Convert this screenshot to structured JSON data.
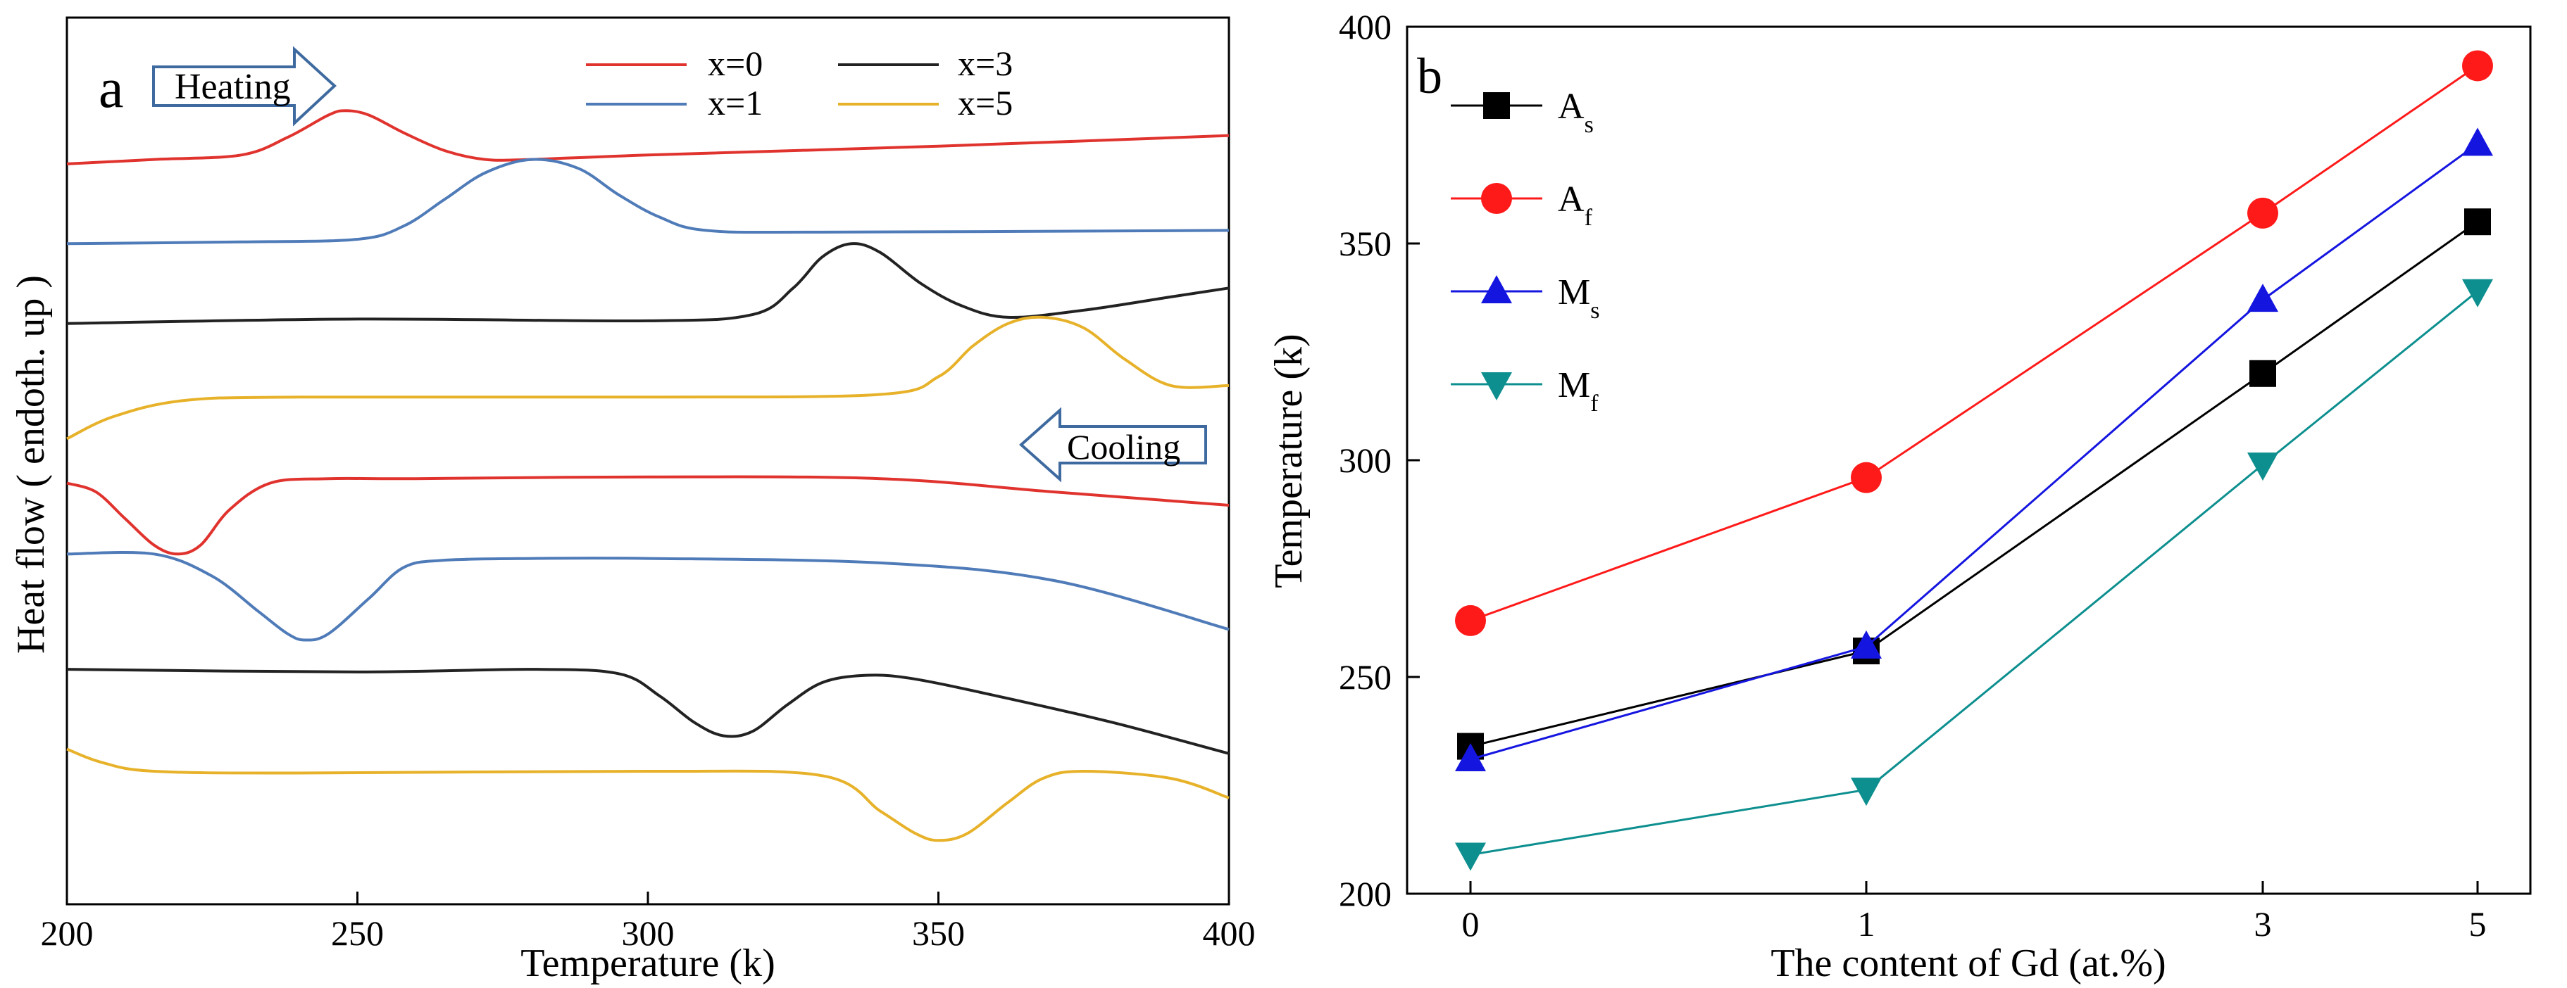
{
  "colors": {
    "x0": "#e0332e",
    "x1": "#4f7bb8",
    "x3": "#222222",
    "x5": "#e7b22a",
    "As": "#000000",
    "Af": "#ff1a1a",
    "Ms": "#1515e0",
    "Mf": "#0e8f8f",
    "arrow": "#3e6aa0"
  },
  "chart_data": [
    {
      "panel": "a",
      "type": "line",
      "xlabel": "Temperature (k)",
      "ylabel": "Heat  flow  ( endoth. up )",
      "xlim": [
        200,
        400
      ],
      "x_ticks": [
        "200",
        "250",
        "300",
        "350",
        "400"
      ],
      "y_ticks": [],
      "ylim": [
        0,
        10
      ],
      "annotations": {
        "heating": "Heating",
        "cooling": "Cooling"
      },
      "legend": [
        {
          "key": "x0",
          "label": "x=0"
        },
        {
          "key": "x1",
          "label": "x=1"
        },
        {
          "key": "x3",
          "label": "x=3"
        },
        {
          "key": "x5",
          "label": "x=5"
        }
      ],
      "series": [
        {
          "name": "x=0 heating",
          "key": "x0",
          "x": [
            200,
            215,
            230,
            238,
            245,
            248,
            252,
            258,
            265,
            272,
            280,
            300,
            350,
            400
          ],
          "y": [
            8.35,
            8.4,
            8.45,
            8.65,
            8.9,
            8.95,
            8.9,
            8.7,
            8.5,
            8.4,
            8.4,
            8.45,
            8.55,
            8.67
          ]
        },
        {
          "name": "x=1 heating",
          "key": "x1",
          "x": [
            200,
            230,
            250,
            258,
            265,
            272,
            280,
            288,
            295,
            302,
            310,
            330,
            400
          ],
          "y": [
            7.45,
            7.47,
            7.5,
            7.65,
            7.95,
            8.25,
            8.4,
            8.3,
            8.0,
            7.75,
            7.6,
            7.58,
            7.6
          ]
        },
        {
          "name": "x=3 heating",
          "key": "x3",
          "x": [
            200,
            250,
            300,
            318,
            325,
            330,
            335,
            340,
            347,
            354,
            362,
            375,
            390,
            400
          ],
          "y": [
            6.55,
            6.6,
            6.58,
            6.65,
            6.95,
            7.3,
            7.45,
            7.35,
            7.0,
            6.75,
            6.62,
            6.7,
            6.85,
            6.95
          ]
        },
        {
          "name": "x=5 heating",
          "key": "x5",
          "x": [
            200,
            208,
            220,
            240,
            300,
            340,
            350,
            356,
            362,
            368,
            375,
            382,
            390,
            400
          ],
          "y": [
            5.25,
            5.5,
            5.68,
            5.72,
            5.72,
            5.75,
            5.95,
            6.3,
            6.55,
            6.62,
            6.5,
            6.15,
            5.85,
            5.85
          ]
        },
        {
          "name": "x=0 cooling",
          "key": "x0",
          "x": [
            200,
            205,
            210,
            215,
            219,
            223,
            228,
            235,
            245,
            260,
            300,
            340,
            370,
            400
          ],
          "y": [
            4.75,
            4.65,
            4.35,
            4.05,
            3.95,
            4.05,
            4.45,
            4.75,
            4.8,
            4.8,
            4.82,
            4.8,
            4.65,
            4.5
          ]
        },
        {
          "name": "x=1 cooling",
          "key": "x1",
          "x": [
            200,
            215,
            225,
            233,
            238,
            241,
            245,
            252,
            258,
            265,
            280,
            300,
            340,
            370,
            400
          ],
          "y": [
            3.95,
            3.95,
            3.7,
            3.3,
            3.05,
            2.98,
            3.05,
            3.45,
            3.8,
            3.88,
            3.9,
            3.9,
            3.85,
            3.65,
            3.1
          ]
        },
        {
          "name": "x=3 cooling",
          "key": "x3",
          "x": [
            200,
            250,
            280,
            295,
            302,
            308,
            313,
            318,
            324,
            330,
            337,
            345,
            360,
            380,
            400
          ],
          "y": [
            2.65,
            2.62,
            2.65,
            2.6,
            2.35,
            2.05,
            1.9,
            1.95,
            2.25,
            2.5,
            2.58,
            2.55,
            2.35,
            2.05,
            1.7
          ]
        },
        {
          "name": "x=5 cooling",
          "key": "x5",
          "x": [
            200,
            206,
            215,
            240,
            300,
            330,
            340,
            346,
            350,
            355,
            362,
            368,
            375,
            390,
            400
          ],
          "y": [
            1.75,
            1.6,
            1.5,
            1.48,
            1.5,
            1.45,
            1.05,
            0.8,
            0.72,
            0.8,
            1.15,
            1.42,
            1.5,
            1.42,
            1.2
          ]
        }
      ]
    },
    {
      "panel": "b",
      "type": "line",
      "xlabel": "The content of Gd (at.%)",
      "ylabel": "Temperature (k)",
      "categories": [
        "0",
        "1",
        "3",
        "5"
      ],
      "ylim": [
        200,
        400
      ],
      "y_ticks": [
        "200",
        "250",
        "300",
        "350",
        "400"
      ],
      "legend_position": "top-left",
      "series": [
        {
          "name": "As",
          "label_main": "A",
          "label_sub": "s",
          "key": "As",
          "marker": "square",
          "values": [
            234,
            256,
            320,
            355
          ]
        },
        {
          "name": "Af",
          "label_main": "A",
          "label_sub": "f",
          "key": "Af",
          "marker": "circle",
          "values": [
            263,
            296,
            357,
            391
          ]
        },
        {
          "name": "Ms",
          "label_main": "M",
          "label_sub": "s",
          "key": "Ms",
          "marker": "triangle-up",
          "values": [
            231,
            257,
            337,
            373
          ]
        },
        {
          "name": "Mf",
          "label_main": "M",
          "label_sub": "f",
          "key": "Mf",
          "marker": "triangle-down",
          "values": [
            209,
            224,
            299,
            339
          ]
        }
      ]
    }
  ]
}
